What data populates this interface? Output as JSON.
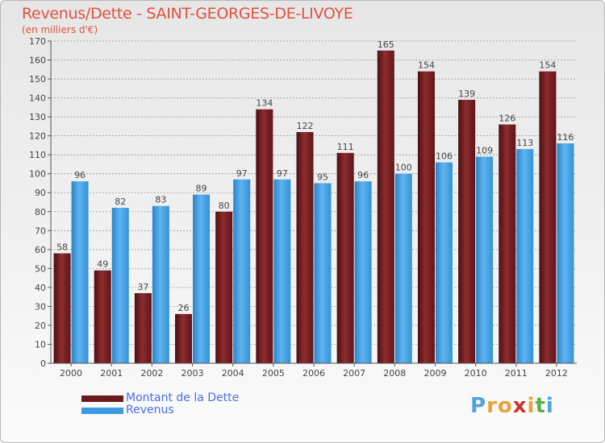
{
  "header": {
    "title": "Revenus/Dette - SAINT-GEORGES-DE-LIVOYE",
    "subtitle": "(en milliers d'€)"
  },
  "logo": {
    "text": "Proxiti",
    "letters": [
      {
        "char": "P",
        "color": "#4da3dd"
      },
      {
        "char": "r",
        "color": "#e8a33a"
      },
      {
        "char": "o",
        "color": "#e8a33a"
      },
      {
        "char": "x",
        "color": "#cc3333"
      },
      {
        "char": "i",
        "color": "#e8a33a"
      },
      {
        "char": "t",
        "color": "#58b14a"
      },
      {
        "char": "i",
        "color": "#4da3dd"
      }
    ]
  },
  "colors": {
    "dette": "#7a1f22",
    "revenus": "#3a9be3",
    "axis": "#555555",
    "grid": "#999999"
  },
  "legend": [
    {
      "label": "Montant de la Dette",
      "color": "#6b1a1c"
    },
    {
      "label": "Revenus",
      "color": "#3a9be3"
    }
  ],
  "chart_data": {
    "type": "bar",
    "title": "Revenus/Dette - SAINT-GEORGES-DE-LIVOYE",
    "subtitle": "(en milliers d'€)",
    "categories": [
      "2000",
      "2001",
      "2002",
      "2003",
      "2004",
      "2005",
      "2006",
      "2007",
      "2008",
      "2009",
      "2010",
      "2011",
      "2012"
    ],
    "series": [
      {
        "name": "Montant de la Dette",
        "values": [
          58,
          49,
          37,
          26,
          80,
          134,
          122,
          111,
          165,
          154,
          139,
          126,
          154
        ]
      },
      {
        "name": "Revenus",
        "values": [
          96,
          82,
          83,
          89,
          97,
          97,
          95,
          96,
          100,
          106,
          109,
          113,
          116
        ]
      }
    ],
    "ylim": [
      0,
      170
    ],
    "yticks": [
      0,
      10,
      20,
      30,
      40,
      50,
      60,
      70,
      80,
      90,
      100,
      110,
      120,
      130,
      140,
      150,
      160,
      170
    ],
    "grid": true,
    "legend_position": "bottom-left",
    "data_labels": true
  }
}
